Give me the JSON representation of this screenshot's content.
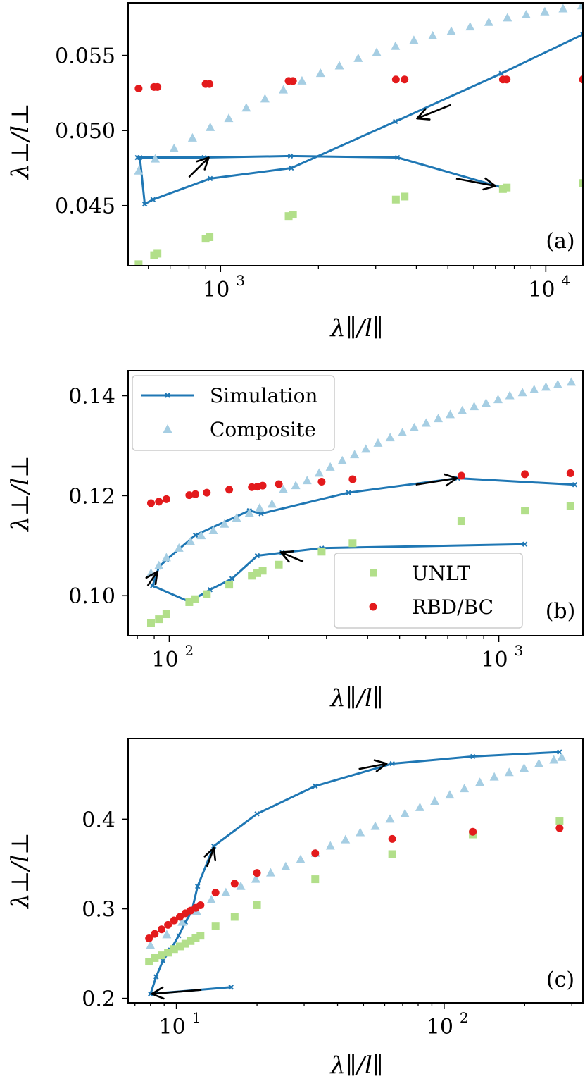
{
  "colors": {
    "simulation": "#1f77b4",
    "composite": "#a6cee3",
    "unlt": "#b2df8a",
    "rbd": "#e31a1c",
    "arrow": "#000000",
    "frame": "#000000"
  },
  "chart_data": [
    {
      "type": "scatter",
      "panel": "(a)",
      "xscale": "log",
      "xlim": [
        520,
        13000
      ],
      "ylim": [
        0.041,
        0.0585
      ],
      "xlabel": "λ∥/l∥",
      "ylabel": "λ⊥/l⊥",
      "xticks": [
        {
          "value": 1000,
          "base": "10",
          "exp": "3"
        },
        {
          "value": 10000,
          "base": "10",
          "exp": "4"
        }
      ],
      "yticks": [
        {
          "value": 0.045,
          "label": "0.045"
        },
        {
          "value": 0.05,
          "label": "0.050"
        },
        {
          "value": 0.055,
          "label": "0.055"
        }
      ],
      "series": [
        {
          "name": "Simulation",
          "kind": "line",
          "x": [
            7350,
            3500,
            1640,
            890,
            555,
            565,
            585,
            620,
            930,
            1650,
            3450,
            7300,
            13000
          ],
          "y": [
            0.0462,
            0.0482,
            0.0483,
            0.0482,
            0.0482,
            0.0482,
            0.0451,
            0.0454,
            0.0468,
            0.0475,
            0.0506,
            0.0538,
            0.0564
          ]
        },
        {
          "name": "Composite",
          "kind": "triangle",
          "x": [
            560,
            630,
            720,
            820,
            930,
            1060,
            1200,
            1370,
            1560,
            1780,
            2030,
            2320,
            2650,
            3020,
            3450,
            3930,
            4490,
            5120,
            5850,
            6680,
            7620,
            8700,
            9930,
            11300,
            12900
          ],
          "y": [
            0.0473,
            0.0481,
            0.0488,
            0.0495,
            0.0502,
            0.0508,
            0.0515,
            0.0521,
            0.0527,
            0.0533,
            0.0538,
            0.0543,
            0.0548,
            0.0552,
            0.0556,
            0.056,
            0.0563,
            0.0566,
            0.0569,
            0.0572,
            0.0575,
            0.0577,
            0.0579,
            0.0581,
            0.0583
          ]
        },
        {
          "name": "UNLT",
          "kind": "square",
          "x": [
            560,
            625,
            640,
            900,
            925,
            1620,
            1670,
            3460,
            3680,
            7380,
            7580,
            13000
          ],
          "y": [
            0.0411,
            0.0417,
            0.0418,
            0.0428,
            0.0429,
            0.0443,
            0.0444,
            0.0454,
            0.0456,
            0.0461,
            0.0462,
            0.0465
          ]
        },
        {
          "name": "RBD/BC",
          "kind": "circle",
          "x": [
            560,
            625,
            640,
            900,
            925,
            1620,
            1670,
            3460,
            3680,
            7380,
            7580,
            13000
          ],
          "y": [
            0.0528,
            0.0529,
            0.0529,
            0.0531,
            0.0531,
            0.0533,
            0.0533,
            0.0534,
            0.0534,
            0.0534,
            0.0534,
            0.0534
          ]
        }
      ],
      "arrows": [
        {
          "from": [
            5100,
            0.0517
          ],
          "to": [
            4020,
            0.0508
          ]
        },
        {
          "from": [
            800,
            0.0469
          ],
          "to": [
            920,
            0.0482
          ]
        },
        {
          "from": [
            5300,
            0.0468
          ],
          "to": [
            7000,
            0.0463
          ]
        }
      ]
    },
    {
      "type": "scatter",
      "panel": "(b)",
      "xscale": "log",
      "xlim": [
        75,
        1800
      ],
      "ylim": [
        0.092,
        0.145
      ],
      "xlabel": "λ∥/l∥",
      "ylabel": "λ⊥/l⊥",
      "xticks": [
        {
          "value": 100,
          "base": "10",
          "exp": "2"
        },
        {
          "value": 1000,
          "base": "10",
          "exp": "3"
        }
      ],
      "yticks": [
        {
          "value": 0.1,
          "label": "0.10"
        },
        {
          "value": 0.12,
          "label": "0.12"
        },
        {
          "value": 0.14,
          "label": "0.14"
        }
      ],
      "series": [
        {
          "name": "Simulation",
          "kind": "line",
          "x": [
            1200,
            290,
            220,
            185,
            155,
            133,
            115,
            89,
            93,
            98,
            120,
            175,
            190,
            350,
            750,
            1700
          ],
          "y": [
            0.1103,
            0.1095,
            0.1086,
            0.108,
            0.1034,
            0.1012,
            0.0988,
            0.102,
            0.1057,
            0.1072,
            0.1121,
            0.117,
            0.1164,
            0.1206,
            0.1235,
            0.1222
          ]
        },
        {
          "name": "Composite",
          "kind": "triangle",
          "x": [
            88,
            93,
            98,
            107,
            116,
            125,
            136,
            147,
            160,
            175,
            188,
            205,
            222,
            242,
            262,
            285,
            308,
            335,
            365,
            395,
            430,
            468,
            510,
            554,
            602,
            655,
            712,
            775,
            842,
            915,
            995,
            1080,
            1180,
            1280,
            1390,
            1510,
            1660
          ],
          "y": [
            0.1045,
            0.106,
            0.1076,
            0.1095,
            0.1108,
            0.112,
            0.113,
            0.1143,
            0.1155,
            0.1165,
            0.1175,
            0.1183,
            0.1212,
            0.122,
            0.123,
            0.1245,
            0.1257,
            0.127,
            0.1282,
            0.1293,
            0.1305,
            0.1316,
            0.1326,
            0.1336,
            0.1345,
            0.1354,
            0.1362,
            0.137,
            0.1378,
            0.1385,
            0.1392,
            0.14,
            0.1406,
            0.1412,
            0.1417,
            0.1422,
            0.1427
          ]
        },
        {
          "name": "UNLT",
          "kind": "square",
          "x": [
            88,
            93,
            98,
            115,
            120,
            130,
            152,
            178,
            185,
            192,
            215,
            290,
            360,
            770,
            1200,
            1650
          ],
          "y": [
            0.0945,
            0.0953,
            0.0963,
            0.0987,
            0.0993,
            0.1003,
            0.1022,
            0.104,
            0.1045,
            0.105,
            0.1062,
            0.1088,
            0.1105,
            0.1149,
            0.117,
            0.118
          ]
        },
        {
          "name": "RBD/BC",
          "kind": "circle",
          "x": [
            88,
            93,
            98,
            115,
            120,
            130,
            152,
            178,
            185,
            192,
            215,
            290,
            360,
            770,
            1200,
            1650
          ],
          "y": [
            0.1185,
            0.1188,
            0.1193,
            0.1201,
            0.1203,
            0.1206,
            0.1212,
            0.1217,
            0.1218,
            0.122,
            0.1223,
            0.1228,
            0.1233,
            0.124,
            0.1243,
            0.1245
          ]
        }
      ],
      "arrows": [
        {
          "from": [
            255,
            0.1068
          ],
          "to": [
            218,
            0.1087
          ]
        },
        {
          "from": [
            86,
            0.102
          ],
          "to": [
            92,
            0.1048
          ]
        },
        {
          "from": [
            560,
            0.1222
          ],
          "to": [
            745,
            0.1235
          ]
        }
      ],
      "legends": [
        {
          "position": "top-left",
          "entries": [
            "Simulation",
            "Composite"
          ]
        },
        {
          "position": "bottom-right",
          "entries": [
            "UNLT",
            "RBD/BC"
          ]
        }
      ]
    },
    {
      "type": "scatter",
      "panel": "(c)",
      "xscale": "log",
      "xlim": [
        6.6,
        330
      ],
      "ylim": [
        0.195,
        0.49
      ],
      "xlabel": "λ∥/l∥",
      "ylabel": "λ⊥/l⊥",
      "xticks": [
        {
          "value": 10,
          "base": "10",
          "exp": "1"
        },
        {
          "value": 100,
          "base": "10",
          "exp": "2"
        }
      ],
      "yticks": [
        {
          "value": 0.2,
          "label": "0.2"
        },
        {
          "value": 0.3,
          "label": "0.3"
        },
        {
          "value": 0.4,
          "label": "0.4"
        }
      ],
      "series": [
        {
          "name": "Simulation",
          "kind": "line",
          "x": [
            16,
            8.0,
            8.4,
            8.9,
            9.5,
            10.2,
            10.8,
            11.4,
            12.0,
            13.8,
            20,
            33,
            64,
            128,
            270
          ],
          "y": [
            0.2125,
            0.205,
            0.224,
            0.242,
            0.254,
            0.27,
            0.285,
            0.297,
            0.325,
            0.37,
            0.406,
            0.437,
            0.462,
            0.47,
            0.475
          ]
        },
        {
          "name": "Composite",
          "kind": "triangle",
          "x": [
            8.0,
            9.2,
            10.5,
            11.9,
            13.5,
            15.3,
            17.4,
            19.8,
            22.5,
            25.6,
            29.1,
            33.1,
            37.6,
            42.8,
            48.6,
            55.3,
            62.8,
            71.4,
            81.2,
            92.3,
            105,
            119,
            136,
            154,
            175,
            199,
            226,
            257,
            275
          ],
          "y": [
            0.259,
            0.271,
            0.285,
            0.297,
            0.31,
            0.318,
            0.325,
            0.333,
            0.34,
            0.347,
            0.355,
            0.362,
            0.37,
            0.377,
            0.385,
            0.392,
            0.4,
            0.406,
            0.413,
            0.42,
            0.427,
            0.434,
            0.441,
            0.447,
            0.452,
            0.457,
            0.462,
            0.466,
            0.469
          ]
        },
        {
          "name": "UNLT",
          "kind": "square",
          "x": [
            7.9,
            8.3,
            8.8,
            9.3,
            9.8,
            10.3,
            10.8,
            11.3,
            11.8,
            12.3,
            14,
            16.5,
            20,
            33,
            64,
            128,
            270
          ],
          "y": [
            0.241,
            0.245,
            0.248,
            0.251,
            0.255,
            0.258,
            0.261,
            0.264,
            0.267,
            0.27,
            0.281,
            0.291,
            0.304,
            0.333,
            0.361,
            0.383,
            0.398
          ]
        },
        {
          "name": "RBD/BC",
          "kind": "circle",
          "x": [
            7.9,
            8.3,
            8.8,
            9.3,
            9.8,
            10.3,
            10.8,
            11.3,
            11.8,
            12.3,
            14,
            16.5,
            20,
            33,
            64,
            128,
            270
          ],
          "y": [
            0.267,
            0.272,
            0.277,
            0.282,
            0.287,
            0.291,
            0.295,
            0.298,
            0.301,
            0.304,
            0.318,
            0.328,
            0.34,
            0.362,
            0.378,
            0.386,
            0.39
          ]
        }
      ],
      "arrows": [
        {
          "from": [
            12.4,
            0.2095
          ],
          "to": [
            8.1,
            0.205
          ]
        },
        {
          "from": [
            13.0,
            0.347
          ],
          "to": [
            13.8,
            0.368
          ]
        },
        {
          "from": [
            48,
            0.456
          ],
          "to": [
            61,
            0.462
          ]
        }
      ]
    }
  ]
}
